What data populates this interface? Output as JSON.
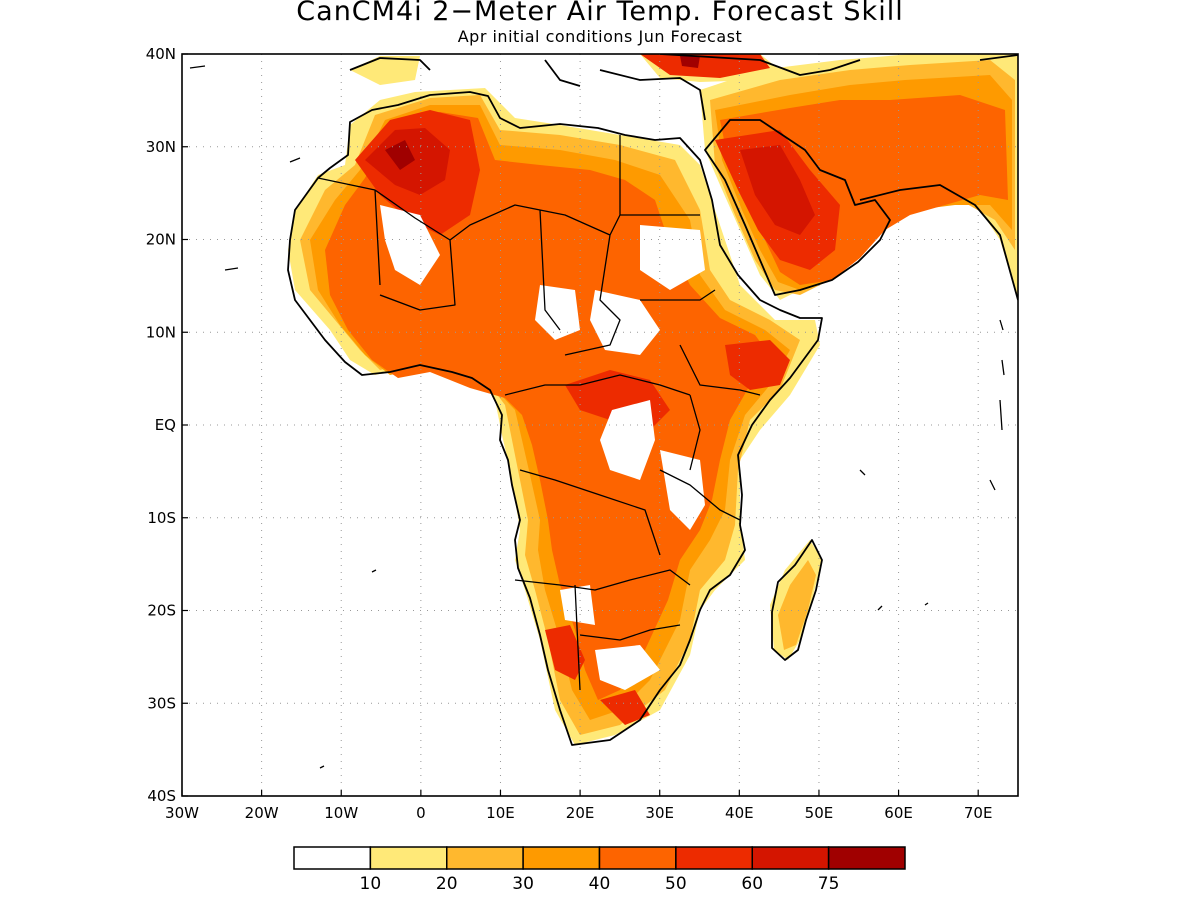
{
  "title": "CanCM4i 2−Meter Air Temp. Forecast Skill",
  "subtitle": "Apr initial conditions  Jun Forecast",
  "map": {
    "lon_range": [
      -30,
      75
    ],
    "lat_range": [
      -40,
      40
    ],
    "x_ticks": [
      {
        "value": -30,
        "label": "30W"
      },
      {
        "value": -20,
        "label": "20W"
      },
      {
        "value": -10,
        "label": "10W"
      },
      {
        "value": 0,
        "label": "0"
      },
      {
        "value": 10,
        "label": "10E"
      },
      {
        "value": 20,
        "label": "20E"
      },
      {
        "value": 30,
        "label": "30E"
      },
      {
        "value": 40,
        "label": "40E"
      },
      {
        "value": 50,
        "label": "50E"
      },
      {
        "value": 60,
        "label": "60E"
      },
      {
        "value": 70,
        "label": "70E"
      }
    ],
    "y_ticks": [
      {
        "value": 40,
        "label": "40N"
      },
      {
        "value": 30,
        "label": "30N"
      },
      {
        "value": 20,
        "label": "20N"
      },
      {
        "value": 10,
        "label": "10N"
      },
      {
        "value": 0,
        "label": "EQ"
      },
      {
        "value": -10,
        "label": "10S"
      },
      {
        "value": -20,
        "label": "20S"
      },
      {
        "value": -30,
        "label": "30S"
      },
      {
        "value": -40,
        "label": "40S"
      }
    ],
    "gridlines": "dotted",
    "colors": {
      "fill_low": "#ffe066",
      "fill_mid": "#fd9a00",
      "fill_high": "#e01b00",
      "fill_max": "#a00000",
      "coast": "#000000"
    }
  },
  "colorbar": {
    "levels": [
      "10",
      "20",
      "30",
      "40",
      "50",
      "60",
      "75"
    ],
    "colors": [
      "#ffffff",
      "#ffe978",
      "#ffb82e",
      "#fe9a00",
      "#fd6400",
      "#ed2b00",
      "#d41500",
      "#a00000"
    ]
  }
}
